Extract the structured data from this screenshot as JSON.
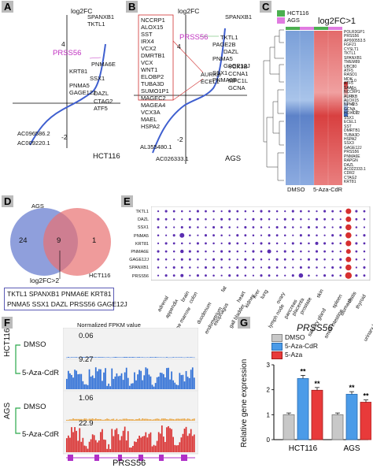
{
  "panels": {
    "A": "A",
    "B": "B",
    "C": "C",
    "D": "D",
    "E": "E",
    "F": "F",
    "G": "G"
  },
  "panelA": {
    "ylabel": "log2FC",
    "sample": "HCT116",
    "tick_pos": "4",
    "tick_neg": "-2",
    "top_genes": [
      "SPANXB1",
      "TKTL1"
    ],
    "highlight_gene": "PRSS56",
    "highlight_color": "#c030c0",
    "genes": [
      "PNMA6E",
      "KRT81",
      "SSX1",
      "PNMA5",
      "DAZL",
      "GAGE12J",
      "CTAG2",
      "ATF5"
    ],
    "bottom_genes": [
      "AC096586.2",
      "AC009220.1"
    ]
  },
  "panelB": {
    "ylabel": "log2FC",
    "sample": "AGS",
    "tick_pos": "4",
    "tick_neg": "-2",
    "top_gene": "SPANXB1",
    "highlight_gene": "PRSS56",
    "right_genes": [
      "TKTL1",
      "PAGE2B",
      "DAZL",
      "PNMA5",
      "GAGE12J",
      "SSX1",
      "PNMA6E",
      "VCX3B",
      "CCNA1",
      "AURKB",
      "MPC1L",
      "ECEL1",
      "GCNA"
    ],
    "boxed_genes": [
      "NCCRP1",
      "ALOX15",
      "SST",
      "IRX4",
      "VCX2",
      "DMRTB1",
      "VCX",
      "WNT1",
      "ELOBP2",
      "TUBA3D",
      "SUMO1P1",
      "MAGEC2",
      "MAGEA4",
      "VCX3A",
      "MAEL",
      "HSPA2"
    ],
    "bottom_genes": [
      "AL355480.1",
      "AC026333.1"
    ]
  },
  "panelC": {
    "title": "log2FC>1",
    "legend": [
      {
        "label": "HCT116",
        "color": "#4caf50"
      },
      {
        "label": "AGS",
        "color": "#e07be0"
      }
    ],
    "x_labels": [
      "DMSO",
      "5-Aza-CdR"
    ],
    "scale": [
      "1.0",
      "0.5",
      "0",
      "-0.5",
      "-1.0"
    ],
    "genes": [
      "POLR3GP1",
      "PRSS56",
      "AP000553.5",
      "FGF21",
      "CYSLT1",
      "TKTL1",
      "SPANXB1",
      "TMEM89",
      "UBC80",
      "ATF5",
      "RASD1",
      "MDK",
      "ATF5",
      "SAA1",
      "NCCRP1",
      "AURKB",
      "ALOX15",
      "NPM2",
      "GCNA",
      "HOXC12",
      "SSX1",
      "ECEL1",
      "SST",
      "DMRTB1",
      "TUBA3D",
      "HSPA2",
      "SSX3",
      "GAGE12J",
      "PRSS56",
      "PNMA6E",
      "RAPGN",
      "DAZL",
      "AC022333.1",
      "CDR2",
      "CTAG2",
      "KRT81"
    ]
  },
  "panelD": {
    "left_label": "AGS",
    "right_label": "HCT116",
    "left_count": "24",
    "overlap_count": "9",
    "right_count": "1",
    "threshold": "log2FC>2",
    "overlap_genes_line1": "TKTL1 SPANXB1 PNMA6E KRT81",
    "overlap_genes_line2": "PNMA5 SSX1 DAZL PRSS56 GAGE12J",
    "left_color": "#6a7fd0",
    "right_color": "#e87070"
  },
  "panelE": {
    "genes": [
      "TKTL1",
      "DAZL",
      "SSX1",
      "PNMA5",
      "KRT81",
      "PNMA6E",
      "GAGE12J",
      "SPANXB1",
      "PRSS56"
    ],
    "tissues": [
      "adrenal",
      "appendix",
      "bone marrow",
      "brain",
      "colon",
      "duodenum",
      "endometrium",
      "esophagus",
      "fat",
      "gall bladder",
      "heart",
      "kidney",
      "liver",
      "lung",
      "lymph node",
      "ovary",
      "pancreas",
      "placenta",
      "prostate",
      "salivary gland",
      "skin",
      "small intestine",
      "spleen",
      "stomach",
      "testis",
      "thyroid",
      "urinary bladder"
    ],
    "bubble_color": "#5a2db0",
    "highlight_color": "#d63030",
    "highlight_tissue": "testis"
  },
  "panelF": {
    "title": "Normalized FPKM value",
    "groups": [
      "HCT116",
      "AGS"
    ],
    "tracks": [
      {
        "label": "DMSO",
        "value": "0.06",
        "color": "#2f6fd6"
      },
      {
        "label": "5-Aza-CdR",
        "value": "9.27",
        "color": "#2f6fd6"
      },
      {
        "label": "DMSO",
        "value": "1.06",
        "color": "#d93030"
      },
      {
        "label": "5-Aza-CdR",
        "value": "22.9",
        "color": "#d93030"
      }
    ],
    "gene": "PRSS56",
    "gene_color": "#b030c8"
  },
  "panelG": {
    "title": "PRSS56",
    "ylabel": "Relative gene expression",
    "legend": [
      {
        "label": "DMSO",
        "color": "#c8c8c8"
      },
      {
        "label": "5-Aza-CdR",
        "color": "#4b9be8"
      },
      {
        "label": "5-Aza",
        "color": "#e83a3a"
      }
    ],
    "sig": "**"
  },
  "chart_data": {
    "type": "bar",
    "title": "PRSS56",
    "ylabel": "Relative gene expression",
    "categories": [
      "HCT116",
      "AGS"
    ],
    "series": [
      {
        "name": "DMSO",
        "values": [
          1.0,
          1.0
        ]
      },
      {
        "name": "5-Aza-CdR",
        "values": [
          2.45,
          1.82
        ]
      },
      {
        "name": "5-Aza",
        "values": [
          1.98,
          1.5
        ]
      }
    ],
    "ylim": [
      0,
      3
    ],
    "yticks": [
      "0",
      "1",
      "2",
      "3"
    ],
    "grid": false,
    "legend": "top-left"
  }
}
